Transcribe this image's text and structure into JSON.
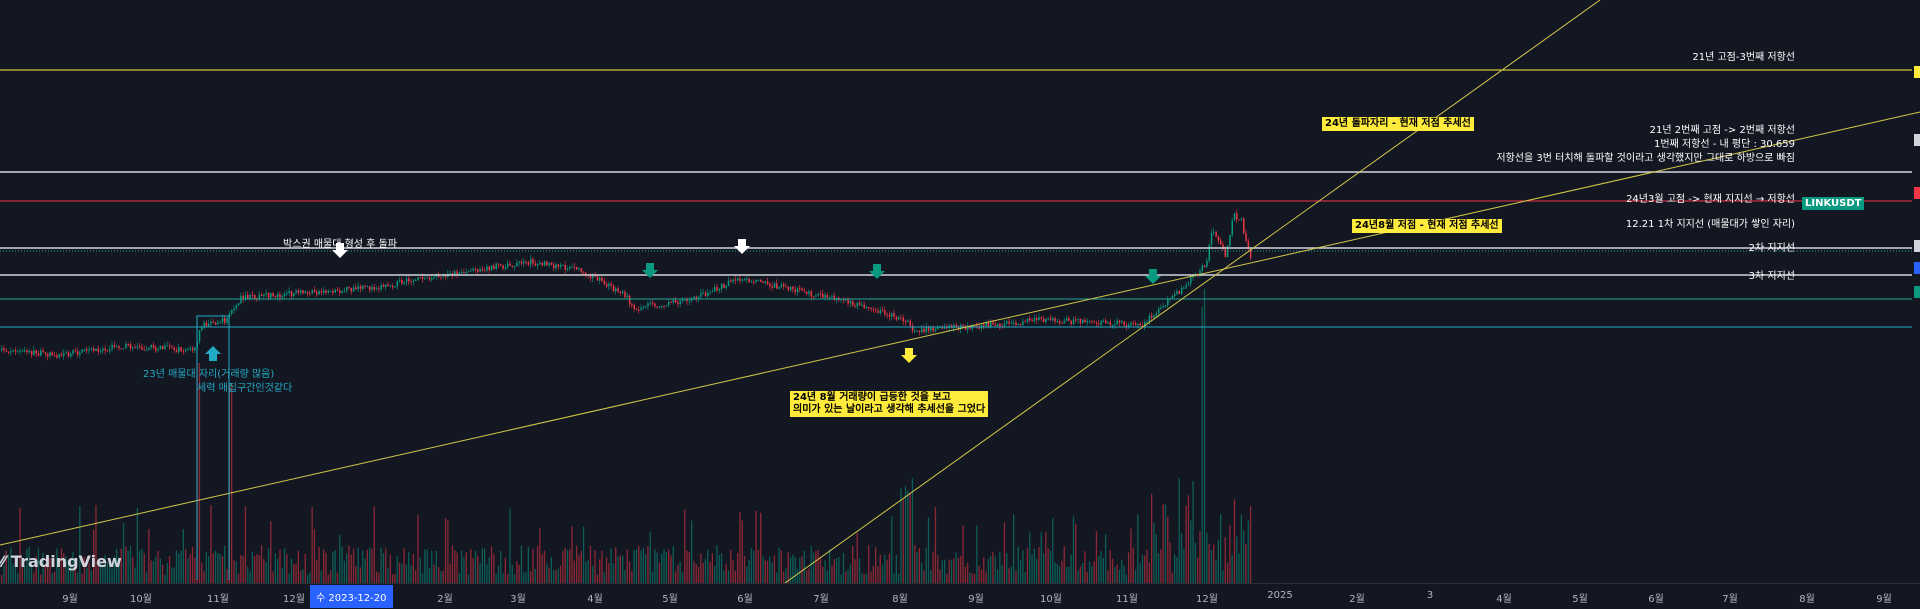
{
  "symbol": "LINKUSDT",
  "brand": "TradingView",
  "colors": {
    "bg": "#131722",
    "up": "#089981",
    "down": "#f23645",
    "yellow": "#ffeb3b",
    "teal": "#26a69a",
    "cyan": "#22abc4",
    "red": "#f23645",
    "white": "#d1d4dc"
  },
  "horizontal_lines": [
    {
      "label": "21년 고점-3번째 저항선",
      "color": "#d4c94a"
    },
    {
      "label": "21년 2번째 고점 -> 2번째 저항선",
      "color": "#d1d4dc"
    },
    {
      "label": "1번째 저항선 - 내 평단 : 30.659",
      "label2": "저항선을 3번 터치해 돌파할 것이라고 생각했지만 그대로 하방으로 빠짐",
      "color": "#f23645"
    },
    {
      "label": "24년3월 고점 -> 현재 지지선 → 저항선",
      "color": "#b2b5be"
    },
    {
      "label": "12.21 1차 지지선 (매물대가 쌓인 자리)",
      "color": "#d1d4dc"
    },
    {
      "label": "2차 지지선",
      "color": "#26a69a"
    },
    {
      "label": "3차 지지선",
      "color": "#22abc4"
    }
  ],
  "trendline_labels": {
    "steep": "24년 돌파자리 - 현재 저점 추세선",
    "shallow": "24년8월 저점 - 현재 저점 추세선"
  },
  "annotations": {
    "box_breakout": "박스권 매물대 형성 후 돌파",
    "zone_line1": "23년 매물대 자리(거래량 많음)",
    "zone_line2": "세력 매집구간인것같다",
    "aug_line1": "24년 8월 거래량이 급등한 것을 보고",
    "aug_line2": "의미가 있는 날이라고 생각해 추세선을 그었다"
  },
  "arrows": [
    {
      "icon": "arrow-down-icon",
      "color": "#ffffff"
    },
    {
      "icon": "arrow-down-icon",
      "color": "#ffffff"
    },
    {
      "icon": "arrow-down-icon",
      "color": "#089981"
    },
    {
      "icon": "arrow-down-icon",
      "color": "#089981"
    },
    {
      "icon": "arrow-down-icon",
      "color": "#089981"
    },
    {
      "icon": "arrow-up-icon",
      "color": "#22abc4"
    },
    {
      "icon": "arrow-down-icon",
      "color": "#ffeb3b"
    }
  ],
  "time_axis": {
    "ticks": [
      "9월",
      "10월",
      "11월",
      "12월",
      "2월",
      "3월",
      "4월",
      "5월",
      "6월",
      "7월",
      "8월",
      "9월",
      "10월",
      "11월",
      "12월",
      "2025",
      "2월",
      "3",
      "4월",
      "5월",
      "6월",
      "7월",
      "8월",
      "9월"
    ],
    "crosshair_date": "수 2023-12-20"
  }
}
